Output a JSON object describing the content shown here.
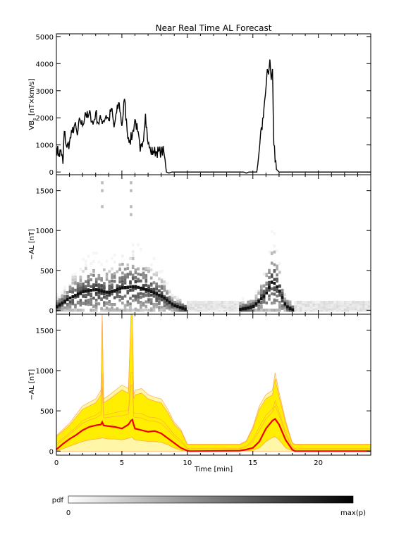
{
  "title": "Near Real Time AL Forecast",
  "colors": {
    "axis": "#000000",
    "fill_yellow": "#ffee00",
    "fill_light": "#fff6a8",
    "median_red": "#ee0000",
    "quantile_orange": "#ffaa44"
  },
  "colorbar": {
    "label": "pdf",
    "min_label": "0",
    "max_label": "max(p)"
  },
  "chart_data": [
    {
      "type": "line",
      "panel": "vbs",
      "ylabel": "VB_s [nT×km/s]",
      "ylabel_main": "VB",
      "ylabel_sub": "s",
      "ylabel_rest": " [nT×km/s]",
      "xlim": [
        0,
        24
      ],
      "ylim": [
        -100,
        5100
      ],
      "yticks": [
        0,
        1000,
        2000,
        3000,
        4000,
        5000
      ],
      "ytick_labels": [
        "0",
        "1000",
        "2000",
        "3000",
        "4000",
        "5000"
      ],
      "series": [
        {
          "x": [
            0,
            0.2,
            0.35,
            0.5,
            0.6,
            0.8,
            1.0,
            1.2,
            1.4,
            1.6,
            1.8,
            2.0,
            2.2,
            2.4,
            2.6,
            2.8,
            3.0,
            3.2,
            3.4,
            3.6,
            3.8,
            4.0,
            4.2,
            4.4,
            4.6,
            4.8,
            5.0,
            5.2,
            5.4,
            5.6,
            5.8,
            6.0,
            6.2,
            6.4,
            6.6,
            6.8,
            7.0,
            7.2,
            7.4,
            7.6,
            7.8,
            8.0,
            8.2,
            8.4,
            8.6,
            8.8,
            9.0,
            14.0,
            14.3,
            14.5,
            14.7,
            14.9,
            15.0,
            15.3,
            15.6,
            15.8,
            16.0,
            16.1,
            16.2,
            16.3,
            16.4,
            16.5,
            16.6,
            16.8,
            17.0,
            17.2,
            24.0
          ],
          "y": [
            900,
            650,
            800,
            300,
            1500,
            900,
            1100,
            1450,
            1750,
            1350,
            1950,
            1700,
            2200,
            2000,
            2150,
            1750,
            2200,
            1800,
            1950,
            1900,
            2100,
            1900,
            2350,
            1650,
            2200,
            2550,
            1700,
            2700,
            1500,
            1150,
            1350,
            1950,
            1500,
            750,
            1100,
            2150,
            1050,
            750,
            750,
            750,
            750,
            750,
            750,
            0,
            -40,
            0,
            0,
            0,
            0,
            -40,
            0,
            0,
            0,
            0,
            1500,
            2000,
            3100,
            3800,
            3600,
            4150,
            3400,
            3800,
            1000,
            100,
            0,
            0,
            0
          ]
        }
      ]
    },
    {
      "type": "heatmap",
      "panel": "al_pdf",
      "ylabel": "−AL [nT]",
      "xlim": [
        0,
        24
      ],
      "ylim": [
        -50,
        1700
      ],
      "yticks": [
        0,
        500,
        1000,
        1500
      ],
      "ytick_labels": [
        "0",
        "500",
        "1000",
        "1500"
      ],
      "description_values": "probability density of -AL vs time; dark ridge follows the most likely value",
      "ridge_x": [
        0,
        1,
        2,
        3,
        4,
        5,
        6,
        7,
        8,
        9,
        10,
        14,
        15,
        16,
        16.5,
        17,
        17.5,
        18,
        24
      ],
      "ridge_y": [
        40,
        150,
        230,
        260,
        220,
        280,
        300,
        250,
        180,
        60,
        5,
        10,
        40,
        200,
        370,
        260,
        60,
        5,
        5
      ]
    },
    {
      "type": "area",
      "panel": "al_quantiles",
      "ylabel": "−AL [nT]",
      "xlabel": "Time [min]",
      "xlim": [
        0,
        24
      ],
      "ylim": [
        -50,
        1700
      ],
      "xticks": [
        0,
        5,
        10,
        15,
        20
      ],
      "xtick_labels": [
        "0",
        "5",
        "10",
        "15",
        "20"
      ],
      "yticks": [
        0,
        500,
        1000,
        1500
      ],
      "ytick_labels": [
        "0",
        "500",
        "1000",
        "1500"
      ],
      "x": [
        0,
        0.5,
        1,
        1.5,
        2,
        2.5,
        3,
        3.4,
        3.5,
        3.6,
        4,
        4.5,
        5,
        5.5,
        5.7,
        5.8,
        5.9,
        6,
        6.5,
        7,
        7.5,
        8,
        8.5,
        9,
        9.5,
        10,
        10.2,
        14,
        14.5,
        15,
        15.5,
        16,
        16.5,
        16.7,
        17,
        17.5,
        18,
        18.2,
        24
      ],
      "series": [
        {
          "name": "upper",
          "values": [
            180,
            250,
            320,
            420,
            520,
            560,
            600,
            700,
            1700,
            600,
            640,
            700,
            760,
            720,
            1700,
            1700,
            650,
            700,
            720,
            650,
            620,
            600,
            480,
            330,
            250,
            80,
            80,
            80,
            120,
            280,
            520,
            650,
            700,
            900,
            680,
            350,
            100,
            80,
            80
          ]
        },
        {
          "name": "median",
          "values": [
            20,
            90,
            150,
            200,
            260,
            300,
            320,
            330,
            360,
            320,
            310,
            300,
            280,
            330,
            380,
            390,
            330,
            280,
            260,
            240,
            250,
            220,
            160,
            100,
            40,
            5,
            0,
            5,
            20,
            40,
            120,
            280,
            380,
            400,
            330,
            140,
            20,
            0,
            0
          ]
        },
        {
          "name": "lower",
          "values": [
            0,
            30,
            60,
            90,
            120,
            140,
            150,
            160,
            170,
            160,
            150,
            150,
            140,
            160,
            170,
            170,
            150,
            140,
            130,
            120,
            120,
            110,
            80,
            40,
            10,
            0,
            0,
            0,
            5,
            10,
            40,
            120,
            170,
            180,
            140,
            40,
            5,
            0,
            0
          ]
        }
      ]
    }
  ]
}
